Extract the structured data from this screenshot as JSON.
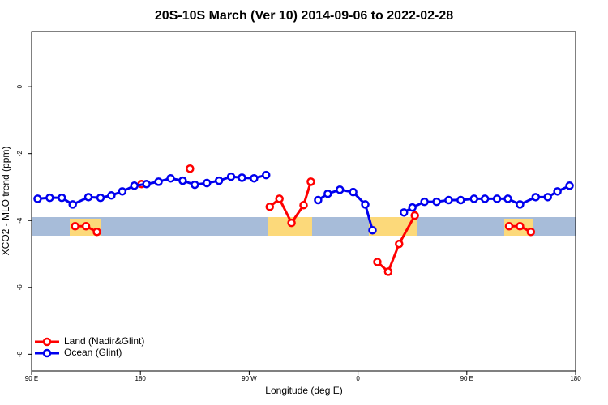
{
  "chart_data": {
    "type": "line",
    "title": "20S-10S March (Ver 10)   2014-09-06 to 2022-02-28",
    "x_label": "Longitude (deg E)",
    "y_label": "XCO2 - MLO trend (ppm)",
    "xlim": [
      90,
      540
    ],
    "xticks": [
      {
        "value": 90,
        "label": "90 E"
      },
      180,
      {
        "value": 270,
        "label": "90 W"
      },
      {
        "value": 360,
        "label": "0"
      },
      {
        "value": 450,
        "label": "90 E"
      },
      {
        "value": 540,
        "label": "180"
      }
    ],
    "ylim": [
      -8.5,
      1.65
    ],
    "yticks": [
      0,
      -2,
      -4,
      -6,
      -8
    ],
    "legend": "bottom-left",
    "series": [
      {
        "name": "Land (Nadir&Glint)",
        "color": "#ff0000",
        "x": [
          126,
          135,
          144,
          null,
          181,
          null,
          221,
          null,
          287,
          295,
          305,
          315,
          321,
          null,
          376,
          385,
          394,
          407,
          null,
          485,
          494,
          503
        ],
        "values": [
          -4.17,
          -4.17,
          -4.34,
          null,
          -2.91,
          null,
          -2.45,
          null,
          -3.59,
          -3.35,
          -4.07,
          -3.54,
          -2.84,
          null,
          -5.24,
          -5.53,
          -4.7,
          -3.85,
          null,
          -4.17,
          -4.17,
          -4.34
        ]
      },
      {
        "name": "Ocean (Glint)",
        "color": "#0000ee",
        "x": [
          95,
          105,
          115,
          124,
          137,
          147,
          156,
          165,
          175,
          185,
          195,
          205,
          215,
          225,
          235,
          245,
          255,
          264,
          274,
          284,
          null,
          327,
          335,
          345,
          356,
          366,
          372,
          null,
          398,
          405,
          415,
          425,
          435,
          445,
          456,
          465,
          475,
          484,
          494,
          507,
          517,
          525,
          535
        ],
        "values": [
          -3.35,
          -3.32,
          -3.32,
          -3.52,
          -3.3,
          -3.32,
          -3.25,
          -3.13,
          -2.96,
          -2.91,
          -2.84,
          -2.74,
          -2.81,
          -2.93,
          -2.88,
          -2.81,
          -2.69,
          -2.72,
          -2.74,
          -2.64,
          null,
          -3.39,
          -3.2,
          -3.08,
          -3.15,
          -3.52,
          -4.29,
          null,
          -3.76,
          -3.61,
          -3.44,
          -3.44,
          -3.39,
          -3.39,
          -3.35,
          -3.35,
          -3.35,
          -3.35,
          -3.52,
          -3.3,
          -3.3,
          -3.13,
          -2.96
        ]
      }
    ]
  }
}
